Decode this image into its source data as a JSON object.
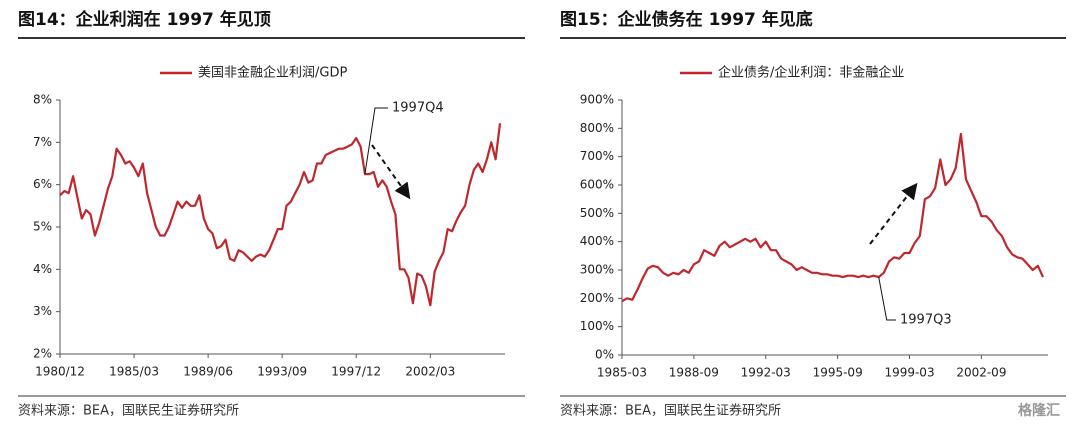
{
  "chart_data": [
    {
      "type": "line",
      "title": "图14：企业利润在 1997 年见顶",
      "source": "资料来源：BEA，国联民生证券研究所",
      "annotation": "1997Q4",
      "categories": [
        "1980/12",
        null,
        null,
        null,
        null,
        null,
        null,
        null,
        null,
        null,
        null,
        null,
        null,
        null,
        null,
        null,
        null,
        "1985/03",
        null,
        null,
        null,
        null,
        null,
        null,
        null,
        null,
        null,
        null,
        null,
        null,
        null,
        null,
        null,
        null,
        "1989/06",
        null,
        null,
        null,
        null,
        null,
        null,
        null,
        null,
        null,
        null,
        null,
        null,
        null,
        null,
        null,
        null,
        "1993/09",
        null,
        null,
        null,
        null,
        null,
        null,
        null,
        null,
        null,
        null,
        null,
        null,
        null,
        null,
        null,
        null,
        "1997/12",
        null,
        null,
        null,
        null,
        null,
        null,
        null,
        null,
        null,
        null,
        null,
        null,
        null,
        null,
        null,
        null,
        "2002/03",
        null,
        null,
        null,
        null,
        null,
        null,
        null,
        null,
        null,
        null,
        null,
        null,
        null,
        null,
        null,
        null
      ],
      "series": [
        {
          "name": "美国非金融企业利润/GDP",
          "color": "#c0272d",
          "values": [
            5.75,
            5.85,
            5.8,
            6.2,
            5.7,
            5.2,
            5.4,
            5.3,
            4.8,
            5.1,
            5.5,
            5.9,
            6.2,
            6.85,
            6.7,
            6.5,
            6.55,
            6.4,
            6.2,
            6.5,
            5.8,
            5.4,
            5.0,
            4.8,
            4.8,
            5.0,
            5.3,
            5.6,
            5.45,
            5.6,
            5.5,
            5.5,
            5.75,
            5.2,
            4.95,
            4.85,
            4.5,
            4.55,
            4.7,
            4.25,
            4.2,
            4.45,
            4.4,
            4.3,
            4.2,
            4.3,
            4.35,
            4.3,
            4.45,
            4.7,
            4.95,
            4.95,
            5.5,
            5.6,
            5.8,
            6.0,
            6.3,
            6.05,
            6.1,
            6.5,
            6.5,
            6.7,
            6.75,
            6.8,
            6.85,
            6.85,
            6.9,
            6.95,
            7.1,
            6.9,
            6.25,
            6.25,
            6.3,
            5.95,
            6.1,
            5.95,
            5.6,
            5.3,
            4.0,
            4.0,
            3.8,
            3.2,
            3.9,
            3.85,
            3.6,
            3.15,
            3.95,
            4.2,
            4.4,
            4.95,
            4.9,
            5.15,
            5.35,
            5.5,
            6.0,
            6.35,
            6.5,
            6.3,
            6.6,
            7.0,
            6.6,
            7.45
          ]
        }
      ],
      "ylim": [
        2,
        8
      ],
      "yticks": [
        {
          "value": 2,
          "label": "2%"
        },
        {
          "value": 3,
          "label": "3%"
        },
        {
          "value": 4,
          "label": "4%"
        },
        {
          "value": 5,
          "label": "5%"
        },
        {
          "value": 6,
          "label": "6%"
        },
        {
          "value": 7,
          "label": "7%"
        },
        {
          "value": 8,
          "label": "8%"
        }
      ]
    },
    {
      "type": "line",
      "title": "图15：企业债务在 1997 年见底",
      "source": "资料来源：BEA，国联民生证券研究所",
      "annotation": "1997Q3",
      "watermark": "格隆汇",
      "categories": [
        "1985-03",
        null,
        null,
        null,
        null,
        null,
        null,
        null,
        null,
        null,
        null,
        null,
        null,
        null,
        "1988-09",
        null,
        null,
        null,
        null,
        null,
        null,
        null,
        null,
        null,
        null,
        null,
        null,
        null,
        "1992-03",
        null,
        null,
        null,
        null,
        null,
        null,
        null,
        null,
        null,
        null,
        null,
        null,
        null,
        "1995-09",
        null,
        null,
        null,
        null,
        null,
        null,
        null,
        null,
        null,
        null,
        null,
        null,
        null,
        "1999-03",
        null,
        null,
        null,
        null,
        null,
        null,
        null,
        null,
        null,
        null,
        null,
        null,
        null,
        "2002-09",
        null,
        null,
        null,
        null,
        null,
        null,
        null,
        null,
        null,
        null,
        null,
        null
      ],
      "series": [
        {
          "name": "企业债务/企业利润：非金融企业",
          "color": "#c0272d",
          "values": [
            190,
            200,
            195,
            230,
            270,
            305,
            315,
            310,
            290,
            280,
            290,
            285,
            300,
            290,
            320,
            330,
            370,
            360,
            350,
            385,
            400,
            380,
            390,
            400,
            410,
            400,
            410,
            380,
            400,
            370,
            370,
            340,
            330,
            320,
            300,
            310,
            300,
            290,
            290,
            285,
            285,
            280,
            280,
            275,
            280,
            280,
            275,
            280,
            275,
            280,
            275,
            290,
            330,
            345,
            340,
            360,
            360,
            395,
            420,
            550,
            560,
            590,
            690,
            600,
            620,
            660,
            780,
            620,
            580,
            540,
            490,
            490,
            470,
            440,
            420,
            380,
            355,
            345,
            340,
            320,
            300,
            315,
            275
          ]
        }
      ],
      "ylim": [
        0,
        900
      ],
      "yticks": [
        {
          "value": 0,
          "label": "0%"
        },
        {
          "value": 100,
          "label": "100%"
        },
        {
          "value": 200,
          "label": "200%"
        },
        {
          "value": 300,
          "label": "300%"
        },
        {
          "value": 400,
          "label": "400%"
        },
        {
          "value": 500,
          "label": "500%"
        },
        {
          "value": 600,
          "label": "600%"
        },
        {
          "value": 700,
          "label": "700%"
        },
        {
          "value": 800,
          "label": "800%"
        },
        {
          "value": 900,
          "label": "900%"
        }
      ]
    }
  ]
}
